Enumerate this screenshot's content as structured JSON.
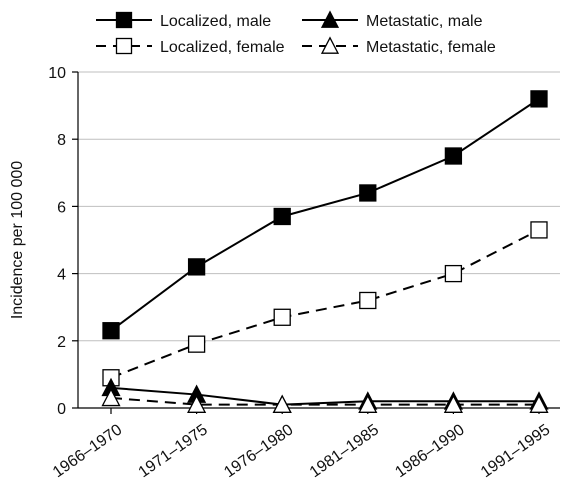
{
  "chart_data": {
    "type": "line",
    "title": "",
    "xlabel": "",
    "ylabel": "Incidence per 100 000",
    "categories": [
      "1966–1970",
      "1971–1975",
      "1976–1980",
      "1981–1985",
      "1986–1990",
      "1991–1995"
    ],
    "ylim": [
      0,
      10
    ],
    "yticks": [
      "0",
      "2",
      "4",
      "6",
      "8",
      "10"
    ],
    "grid": "horizontal",
    "legend_position": "top",
    "series": [
      {
        "name": "Localized, male",
        "values": [
          2.3,
          4.2,
          5.7,
          6.4,
          7.5,
          9.2
        ],
        "marker": "square",
        "fill": "#000000",
        "dash": "solid"
      },
      {
        "name": "Localized, female",
        "values": [
          0.9,
          1.9,
          2.7,
          3.2,
          4.0,
          5.3
        ],
        "marker": "square",
        "fill": "#ffffff",
        "dash": "dashed"
      },
      {
        "name": "Metastatic, male",
        "values": [
          0.6,
          0.4,
          0.1,
          0.2,
          0.2,
          0.2
        ],
        "marker": "triangle",
        "fill": "#000000",
        "dash": "solid"
      },
      {
        "name": "Metastatic, female",
        "values": [
          0.3,
          0.1,
          0.1,
          0.1,
          0.1,
          0.1
        ],
        "marker": "triangle",
        "fill": "#ffffff",
        "dash": "dashed"
      }
    ]
  }
}
